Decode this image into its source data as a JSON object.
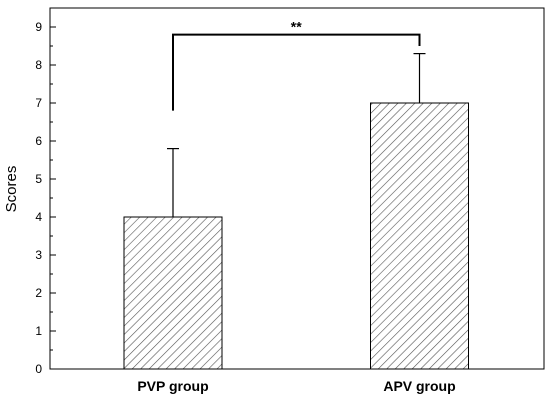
{
  "chart_data": {
    "type": "bar",
    "categories": [
      "PVP group",
      "APV group"
    ],
    "values": [
      4,
      7
    ],
    "errors": [
      1.8,
      1.3
    ],
    "ylabel": "Scores",
    "xlabel": "",
    "ylim": [
      0,
      9.5
    ],
    "yticks": [
      0,
      1,
      2,
      3,
      4,
      5,
      6,
      7,
      8,
      9
    ],
    "yticks_labels": [
      "0",
      "1",
      "2",
      "3",
      "4",
      "5",
      "6",
      "7",
      "8",
      "9"
    ],
    "bar_fill": "diagonal-hatch",
    "grid": false,
    "significance": {
      "label": "**",
      "between": [
        0,
        1
      ],
      "level": 8.8,
      "left_drop_to": 6.8,
      "right_drop_to": 8.5
    }
  }
}
